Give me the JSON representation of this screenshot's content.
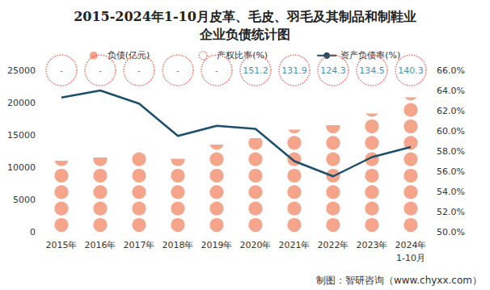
{
  "chart_data": {
    "type": "bar",
    "title": "2015-2024年1-10月皮革、毛皮、羽毛及其制品和制鞋业\n企业负债统计图",
    "source": "制图：智研咨询（www.chyxx.com）",
    "categories": [
      "2015年",
      "2016年",
      "2017年",
      "2018年",
      "2019年",
      "2020年",
      "2021年",
      "2022年",
      "2023年",
      "2024年\n1-10月"
    ],
    "series": [
      {
        "name": "负债(亿元)",
        "type": "bar",
        "marker": "circle",
        "color": "#f4a58c",
        "values": [
          11000,
          11500,
          12700,
          11300,
          13500,
          14500,
          15800,
          16500,
          18300,
          20800
        ]
      },
      {
        "name": "产权比率(%)",
        "type": "scatter",
        "marker": "circle",
        "line_style": "dotted",
        "color": "#e0534a",
        "data_labels": true,
        "values": [
          null,
          null,
          null,
          null,
          null,
          151.2,
          131.9,
          124.3,
          134.5,
          140.3
        ],
        "value_labels": [
          "-",
          "-",
          "-",
          "-",
          "-",
          "151.2",
          "131.9",
          "124.3",
          "134.5",
          "140.3"
        ]
      },
      {
        "name": "资产负债率(%)",
        "type": "line",
        "axis": "y2",
        "color": "#1b4f6b",
        "values": [
          63.3,
          64.0,
          62.7,
          59.5,
          60.5,
          60.2,
          57.0,
          55.5,
          57.4,
          58.4
        ]
      }
    ],
    "ylim": [
      0,
      25000
    ],
    "yticks": [
      0,
      5000,
      10000,
      15000,
      20000,
      25000
    ],
    "y2lim": [
      50,
      66
    ],
    "y2ticks": [
      {
        "value": 50,
        "label": "50.0%"
      },
      {
        "value": 52,
        "label": "52.0%"
      },
      {
        "value": 54,
        "label": "54.0%"
      },
      {
        "value": 56,
        "label": "56.0%"
      },
      {
        "value": 58,
        "label": "58.0%"
      },
      {
        "value": 60,
        "label": "60.0%"
      },
      {
        "value": 62,
        "label": "62.0%"
      },
      {
        "value": 64,
        "label": "64.0%"
      },
      {
        "value": 66,
        "label": "66.0%"
      }
    ],
    "grid": false,
    "legend": "top"
  }
}
